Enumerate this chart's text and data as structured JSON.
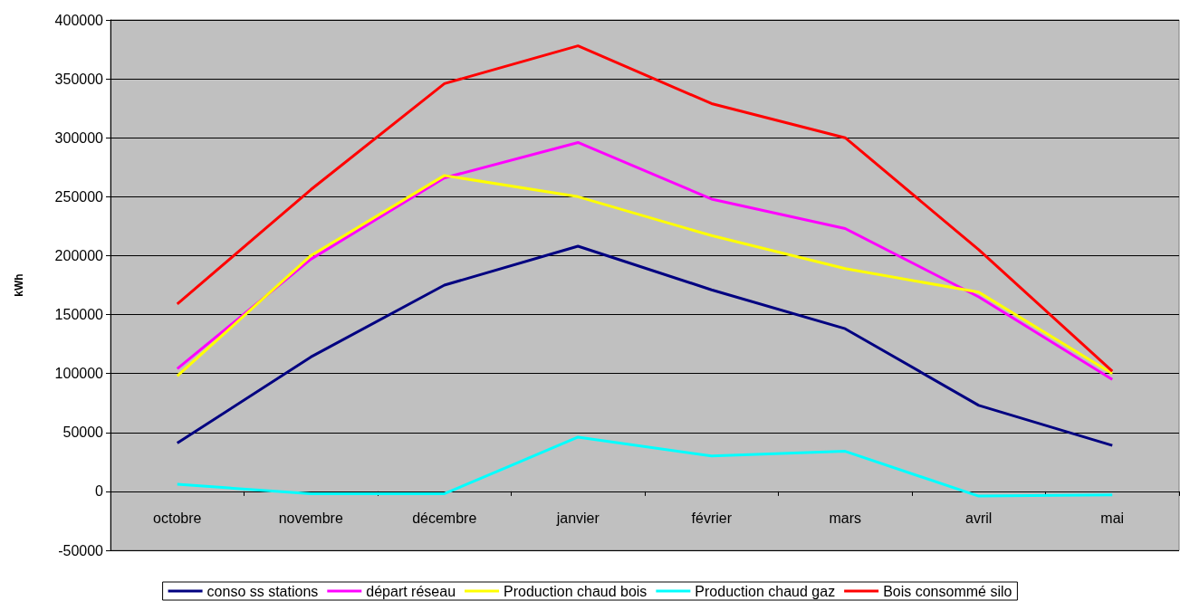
{
  "chart_data": {
    "type": "line",
    "ylabel": "kWh",
    "categories": [
      "octobre",
      "novembre",
      "décembre",
      "janvier",
      "février",
      "mars",
      "avril",
      "mai"
    ],
    "series": [
      {
        "name": "conso ss stations",
        "color": "#000080",
        "values": [
          41000,
          114000,
          175000,
          208000,
          171000,
          138000,
          73000,
          39000
        ]
      },
      {
        "name": "départ réseau",
        "color": "#ff00ff",
        "values": [
          104000,
          197000,
          266000,
          296000,
          248000,
          223000,
          165000,
          95000
        ]
      },
      {
        "name": "Production chaud bois",
        "color": "#ffff00",
        "values": [
          98000,
          200000,
          268000,
          250000,
          217000,
          189000,
          169000,
          100000
        ]
      },
      {
        "name": "Production chaud gaz",
        "color": "#00ffff",
        "values": [
          6000,
          -2000,
          -2000,
          46000,
          30000,
          34000,
          -4000,
          -3000
        ]
      },
      {
        "name": "Bois consommé silo",
        "color": "#ff0000",
        "values": [
          159000,
          256000,
          346000,
          378000,
          329000,
          300000,
          205000,
          102000
        ]
      }
    ],
    "ylim": [
      -50000,
      400000
    ],
    "yticks": [
      -50000,
      0,
      50000,
      100000,
      150000,
      200000,
      250000,
      300000,
      350000,
      400000
    ],
    "grid": "y",
    "legend": "bottom",
    "marker": "none",
    "line_style": "solid"
  }
}
